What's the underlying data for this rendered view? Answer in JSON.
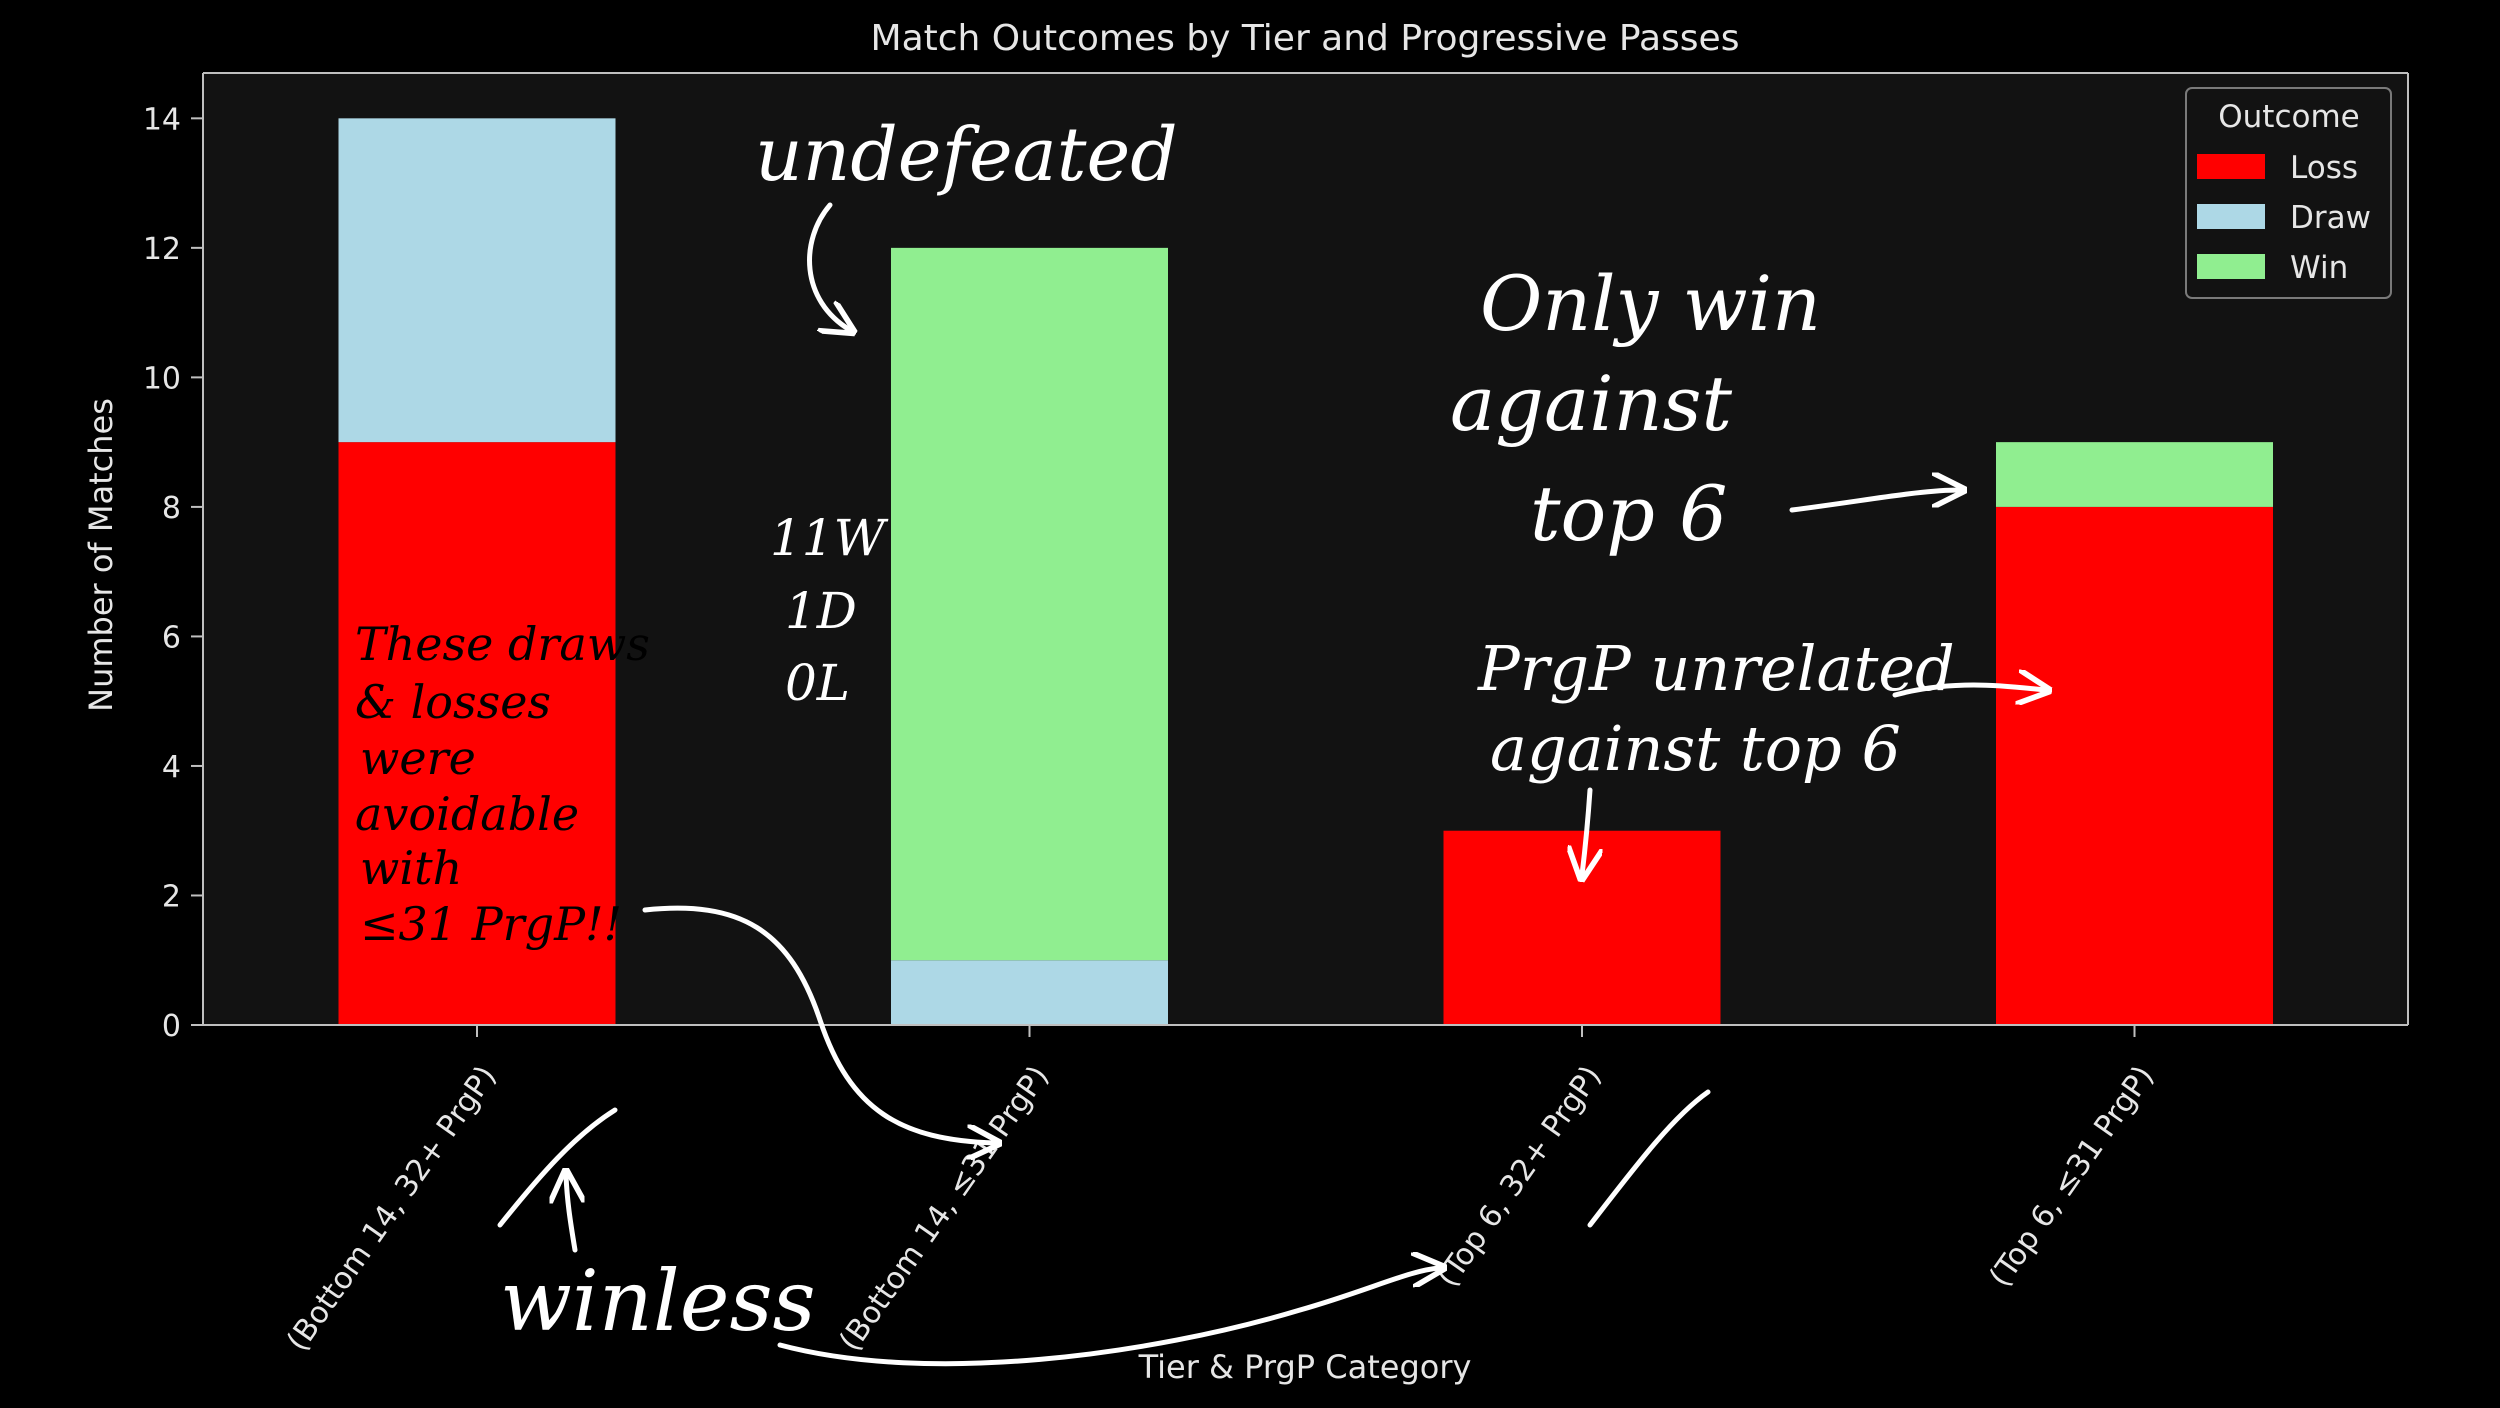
{
  "chart_data": {
    "type": "bar",
    "stacked": true,
    "title": "Match Outcomes by Tier and Progressive Passes",
    "xlabel": "Tier & PrgP Category",
    "ylabel": "Number of Matches",
    "categories": [
      "(Bottom 14, 32+ PrgP)",
      "(Bottom 14, ≤31 PrgP)",
      "(Top 6, 32+ PrgP)",
      "(Top 6, ≤31 PrgP)"
    ],
    "series": [
      {
        "name": "Loss",
        "color": "#ff0000",
        "values": [
          9,
          0,
          3,
          8
        ]
      },
      {
        "name": "Draw",
        "color": "#add8e6",
        "values": [
          5,
          1,
          0,
          0
        ]
      },
      {
        "name": "Win",
        "color": "#90ee90",
        "values": [
          0,
          11,
          0,
          1
        ]
      }
    ],
    "ylim": [
      0,
      14.7
    ],
    "yticks": [
      0,
      2,
      4,
      6,
      8,
      10,
      12,
      14
    ],
    "legend": {
      "title": "Outcome",
      "placement": "top-right"
    },
    "grid": false,
    "colors": {
      "background": "#000000",
      "axes_face": "#121212",
      "spine": "#bfbfbf",
      "text": "#e6e6e6"
    }
  },
  "annotations": {
    "undefeated": "undefeated",
    "record_lines": [
      "11W",
      "1D",
      "0L"
    ],
    "only_win_lines": [
      "Only win",
      "against",
      "top 6"
    ],
    "prgp_lines": [
      "PrgP unrelated",
      "against top 6"
    ],
    "avoidable_lines": [
      "These draws",
      "& losses",
      "were",
      "avoidable",
      "with",
      "≤31 PrgP!!"
    ],
    "winless": "winless"
  }
}
